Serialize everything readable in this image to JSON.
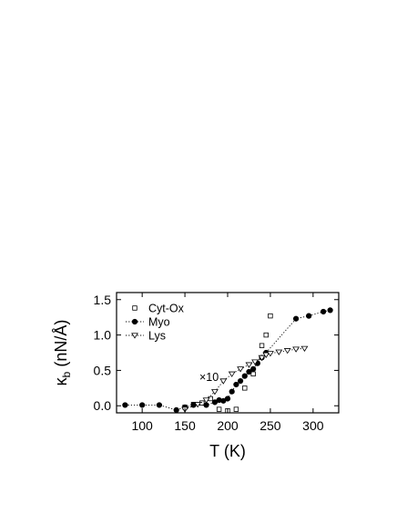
{
  "chart_data": {
    "type": "scatter",
    "xlabel": "T (K)",
    "ylabel": "κ_b (nN/Å)",
    "ylabel_main": "κ",
    "ylabel_sub": "b",
    "ylabel_unit": " (nN/Å)",
    "xlim": [
      70,
      330
    ],
    "ylim": [
      -0.1,
      1.6
    ],
    "x_ticks": [
      100,
      150,
      200,
      250,
      300
    ],
    "y_ticks": [
      0.0,
      0.5,
      1.0,
      1.5
    ],
    "x_tick_labels": [
      "100",
      "150",
      "200",
      "250",
      "300"
    ],
    "y_tick_labels": [
      "0.0",
      "0.5",
      "1.0",
      "1.5"
    ],
    "legend_position": "top-left",
    "annotation": "×10",
    "series": [
      {
        "name": "Cyt-Ox",
        "marker": "open-square",
        "line": "none",
        "x": [
          150,
          160,
          170,
          180,
          190,
          200,
          210,
          220,
          230,
          240,
          245,
          250
        ],
        "y": [
          -0.02,
          0.02,
          0.04,
          0.1,
          -0.05,
          -0.07,
          -0.05,
          0.25,
          0.45,
          0.85,
          1.0,
          1.27
        ]
      },
      {
        "name": "Myo",
        "marker": "filled-circle",
        "line": "dotted",
        "x": [
          80,
          100,
          120,
          140,
          150,
          160,
          175,
          185,
          190,
          195,
          200,
          205,
          210,
          215,
          220,
          225,
          230,
          235,
          240,
          245,
          280,
          295,
          312,
          320
        ],
        "y": [
          0.01,
          0.01,
          0.01,
          -0.06,
          -0.02,
          0.01,
          0.01,
          0.05,
          0.08,
          0.07,
          0.1,
          0.2,
          0.3,
          0.35,
          0.42,
          0.48,
          0.52,
          0.6,
          0.68,
          0.75,
          1.23,
          1.27,
          1.33,
          1.35
        ]
      },
      {
        "name": "Lys",
        "marker": "open-triangle-down",
        "line": "dotted",
        "x": [
          150,
          165,
          175,
          185,
          195,
          205,
          215,
          225,
          232,
          240,
          245,
          250,
          260,
          270,
          280,
          290
        ],
        "y": [
          -0.05,
          0.02,
          0.08,
          0.2,
          0.35,
          0.45,
          0.52,
          0.58,
          0.62,
          0.68,
          0.72,
          0.74,
          0.76,
          0.78,
          0.8,
          0.81
        ]
      }
    ]
  }
}
